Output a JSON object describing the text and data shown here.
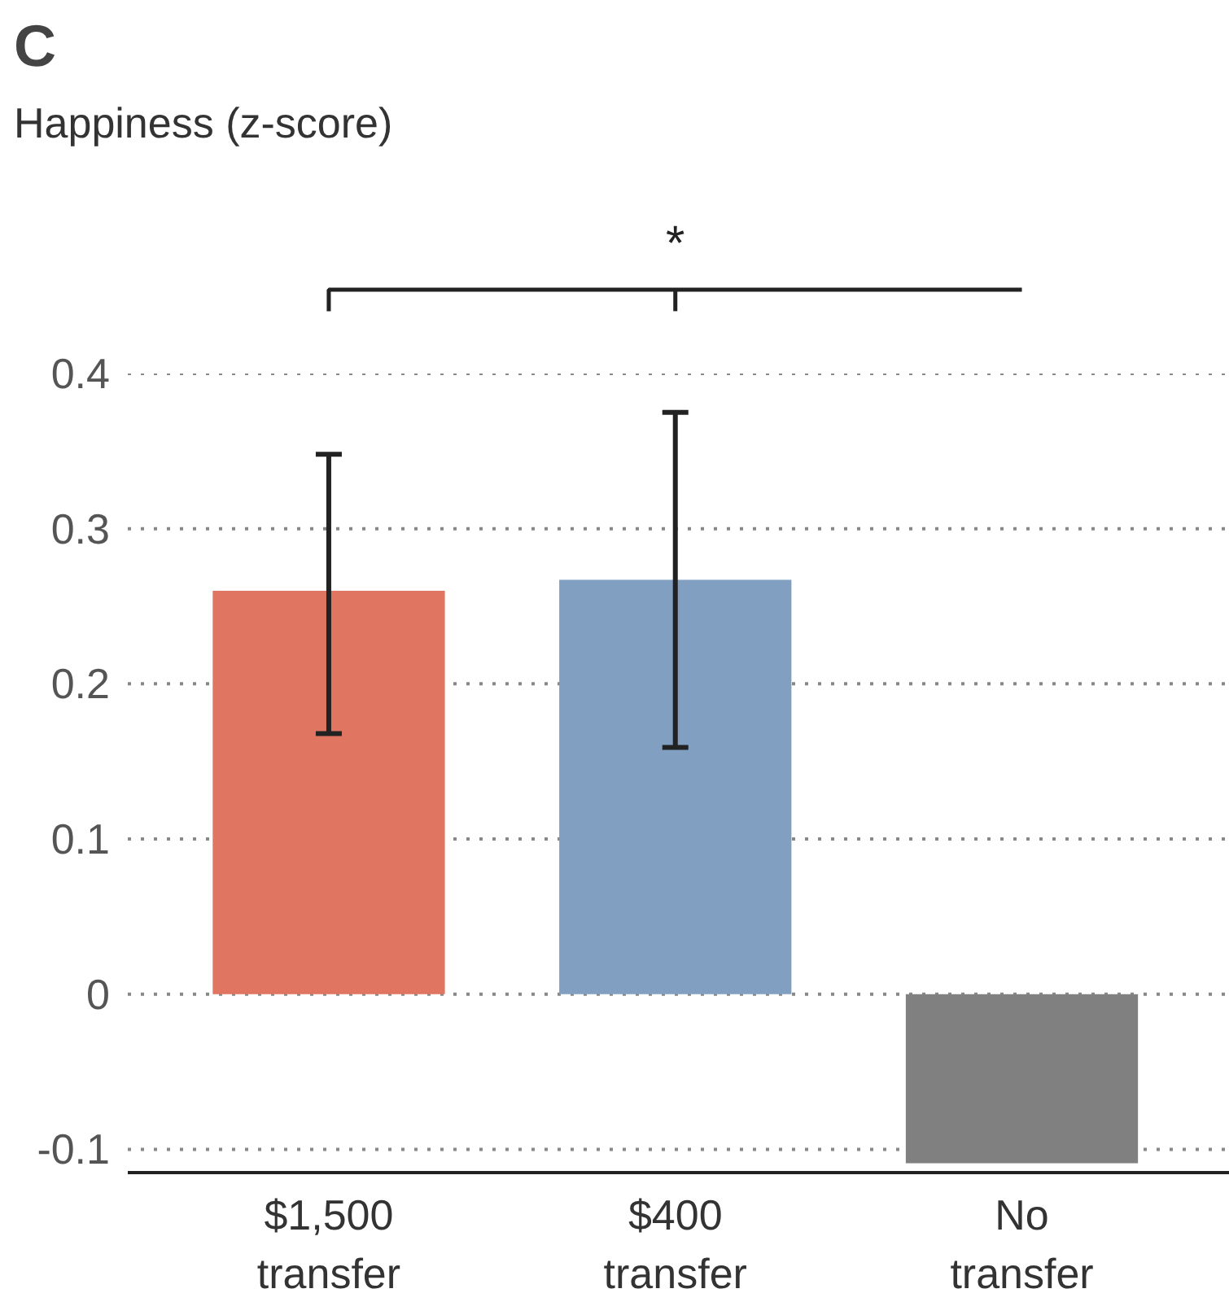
{
  "chart_data": {
    "type": "bar",
    "title": "C",
    "ylabel": "Happiness (z-score)",
    "categories": [
      "$1,500 transfer",
      "$400 transfer",
      "No transfer"
    ],
    "values": [
      0.26,
      0.267,
      -0.109
    ],
    "colors": [
      "#e07662",
      "#819fc0",
      "#808080"
    ],
    "errors": [
      [
        0.168,
        0.348
      ],
      [
        0.159,
        0.375
      ],
      null
    ],
    "ylim": [
      -0.115,
      0.4
    ],
    "yticks": [
      -0.1,
      0,
      0.1,
      0.2,
      0.3,
      0.4
    ],
    "grid": "y",
    "annotations": [
      "*"
    ]
  }
}
